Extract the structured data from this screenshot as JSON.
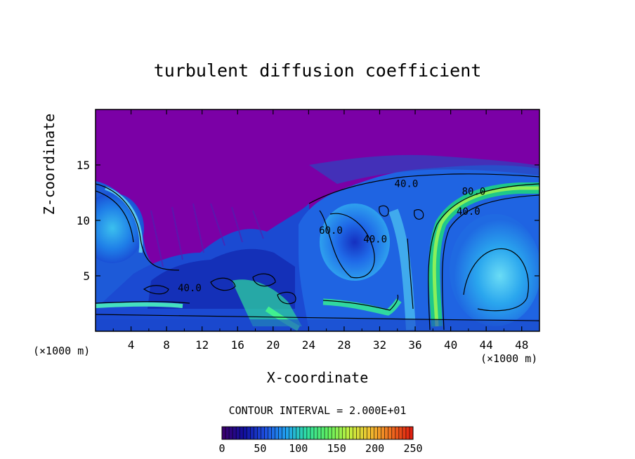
{
  "chart_data": {
    "type": "heatmap",
    "title": "turbulent diffusion coefficient",
    "xlabel": "X-coordinate",
    "ylabel": "Z-coordinate",
    "x_unit_left": "(×1000 m)",
    "x_unit_right": "(×1000 m)",
    "xlim": [
      0,
      50
    ],
    "ylim": [
      0,
      20
    ],
    "x_ticks": [
      4,
      8,
      12,
      16,
      20,
      24,
      28,
      32,
      36,
      40,
      44,
      48
    ],
    "y_ticks": [
      5,
      10,
      15
    ],
    "contour_interval_text": "CONTOUR INTERVAL = 2.000E+01",
    "contour_labels": [
      {
        "text": "40.0",
        "x": 35.0,
        "y": 13.0
      },
      {
        "text": "40.0",
        "x": 31.5,
        "y": 8.0
      },
      {
        "text": "60.0",
        "x": 26.5,
        "y": 8.8
      },
      {
        "text": "80.0",
        "x": 42.6,
        "y": 12.3
      },
      {
        "text": "40.0",
        "x": 42.0,
        "y": 10.5
      },
      {
        "text": "40.0",
        "x": 10.6,
        "y": 3.6
      }
    ],
    "colorbar": {
      "min": 0,
      "max": 250,
      "tick_labels": [
        "0",
        "50",
        "100",
        "150",
        "200",
        "250"
      ],
      "colors": [
        "#3a0070",
        "#1010a0",
        "#1e50e0",
        "#20a0f0",
        "#30e0a0",
        "#60f060",
        "#c0f040",
        "#f0c030",
        "#f07020",
        "#e02010"
      ]
    },
    "background_color": "#7b00a6",
    "notes_visible": false
  }
}
